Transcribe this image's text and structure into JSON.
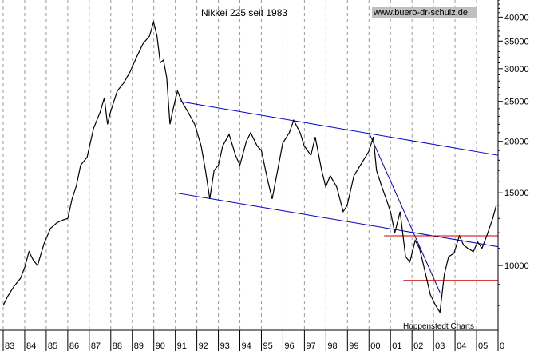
{
  "chart_data": {
    "type": "line",
    "title": "Nikkei 225 seit 1983",
    "source_url": "www.buero-dr-schulz.de",
    "credit": "Hoppenstedt Charts",
    "yscale": "log",
    "ylim": [
      7000,
      44000
    ],
    "xlim": [
      1983,
      2006
    ],
    "y_ticks": [
      10000,
      15000,
      20000,
      25000,
      30000,
      35000,
      40000
    ],
    "y_tick_labels": [
      "10000",
      "15000",
      "20000",
      "25000",
      "30000",
      "35000",
      "40000"
    ],
    "x_tick_labels": [
      "83",
      "84",
      "85",
      "86",
      "87",
      "88",
      "89",
      "90",
      "91",
      "92",
      "93",
      "94",
      "95",
      "96",
      "97",
      "98",
      "99",
      "00",
      "01",
      "02",
      "03",
      "04",
      "05",
      "0"
    ],
    "grid": "vertical dashed",
    "series": [
      {
        "color": "#000000",
        "points": [
          [
            1983.0,
            8000
          ],
          [
            1983.2,
            8400
          ],
          [
            1983.5,
            8900
          ],
          [
            1983.8,
            9300
          ],
          [
            1984.0,
            9900
          ],
          [
            1984.2,
            10800
          ],
          [
            1984.4,
            10300
          ],
          [
            1984.6,
            10000
          ],
          [
            1984.9,
            11300
          ],
          [
            1985.2,
            12300
          ],
          [
            1985.5,
            12700
          ],
          [
            1985.8,
            12900
          ],
          [
            1986.0,
            13000
          ],
          [
            1986.2,
            14500
          ],
          [
            1986.4,
            15600
          ],
          [
            1986.6,
            17500
          ],
          [
            1986.9,
            18300
          ],
          [
            1987.2,
            21500
          ],
          [
            1987.5,
            23500
          ],
          [
            1987.7,
            25500
          ],
          [
            1987.85,
            22000
          ],
          [
            1988.0,
            23700
          ],
          [
            1988.3,
            26500
          ],
          [
            1988.6,
            27700
          ],
          [
            1988.9,
            29500
          ],
          [
            1989.2,
            32000
          ],
          [
            1989.5,
            34500
          ],
          [
            1989.8,
            36000
          ],
          [
            1989.99,
            38900
          ],
          [
            1990.15,
            36000
          ],
          [
            1990.3,
            31000
          ],
          [
            1990.45,
            31500
          ],
          [
            1990.6,
            28500
          ],
          [
            1990.75,
            22000
          ],
          [
            1990.9,
            24000
          ],
          [
            1991.1,
            26500
          ],
          [
            1991.3,
            25000
          ],
          [
            1991.6,
            23500
          ],
          [
            1991.9,
            22000
          ],
          [
            1992.2,
            19500
          ],
          [
            1992.4,
            17000
          ],
          [
            1992.6,
            14500
          ],
          [
            1992.8,
            17000
          ],
          [
            1993.0,
            17500
          ],
          [
            1993.2,
            19500
          ],
          [
            1993.5,
            20800
          ],
          [
            1993.8,
            18500
          ],
          [
            1994.0,
            17500
          ],
          [
            1994.3,
            20000
          ],
          [
            1994.5,
            21000
          ],
          [
            1994.8,
            19500
          ],
          [
            1995.0,
            19000
          ],
          [
            1995.3,
            16000
          ],
          [
            1995.5,
            14500
          ],
          [
            1995.8,
            17500
          ],
          [
            1995.99,
            19800
          ],
          [
            1996.3,
            21000
          ],
          [
            1996.5,
            22500
          ],
          [
            1996.8,
            21000
          ],
          [
            1996.99,
            19500
          ],
          [
            1997.3,
            18500
          ],
          [
            1997.5,
            20500
          ],
          [
            1997.8,
            17000
          ],
          [
            1997.99,
            15500
          ],
          [
            1998.2,
            16500
          ],
          [
            1998.5,
            15500
          ],
          [
            1998.8,
            13500
          ],
          [
            1998.99,
            14000
          ],
          [
            1999.3,
            16500
          ],
          [
            1999.6,
            17500
          ],
          [
            1999.99,
            18900
          ],
          [
            2000.2,
            20500
          ],
          [
            2000.35,
            17000
          ],
          [
            2000.6,
            15500
          ],
          [
            2000.8,
            14500
          ],
          [
            2001.0,
            13500
          ],
          [
            2001.2,
            12000
          ],
          [
            2001.45,
            13500
          ],
          [
            2001.7,
            10500
          ],
          [
            2001.9,
            10200
          ],
          [
            2002.15,
            11500
          ],
          [
            2002.35,
            11000
          ],
          [
            2002.6,
            9700
          ],
          [
            2002.85,
            8500
          ],
          [
            2003.1,
            8000
          ],
          [
            2003.3,
            7700
          ],
          [
            2003.5,
            9500
          ],
          [
            2003.7,
            10500
          ],
          [
            2003.95,
            10700
          ],
          [
            2004.2,
            11800
          ],
          [
            2004.4,
            11200
          ],
          [
            2004.6,
            11000
          ],
          [
            2004.85,
            10800
          ],
          [
            2005.05,
            11400
          ],
          [
            2005.25,
            11000
          ],
          [
            2005.5,
            11900
          ],
          [
            2005.75,
            13000
          ],
          [
            2005.92,
            14000
          ]
        ]
      }
    ],
    "trend_lines": [
      {
        "color": "#0000cc",
        "from": [
          1991.2,
          25000
        ],
        "to": [
          2006.0,
          18500
        ]
      },
      {
        "color": "#0000cc",
        "from": [
          1991.0,
          15000
        ],
        "to": [
          2006.0,
          11100
        ]
      },
      {
        "color": "#0000cc",
        "from": [
          2000.0,
          21000
        ],
        "to": [
          2003.3,
          8600
        ]
      },
      {
        "color": "#cc0000",
        "from": [
          2000.7,
          11800
        ],
        "to": [
          2006.0,
          11800
        ]
      },
      {
        "color": "#cc0000",
        "from": [
          2001.6,
          9200
        ],
        "to": [
          2006.0,
          9200
        ]
      }
    ]
  }
}
